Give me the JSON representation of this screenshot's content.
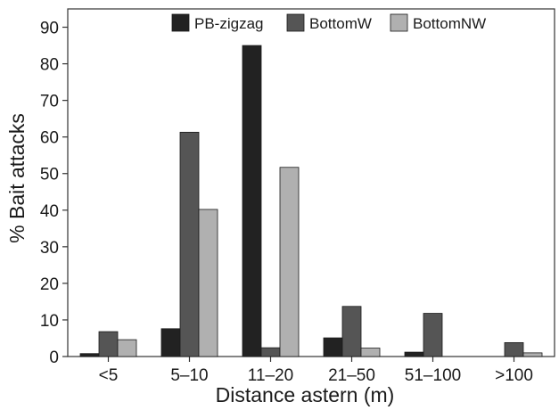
{
  "chart_data": {
    "type": "bar",
    "title": "",
    "xlabel": "Distance astern (m)",
    "ylabel": "% Bait attacks",
    "categories": [
      "<5",
      "5–10",
      "11–20",
      "21–50",
      "51–100",
      ">100"
    ],
    "ylim": [
      0,
      95
    ],
    "yticks": [
      0,
      10,
      20,
      30,
      40,
      50,
      60,
      70,
      80,
      90
    ],
    "grid": false,
    "legend_position": "top-right",
    "series": [
      {
        "name": "PB-zigzag",
        "color": "#222222",
        "values": [
          0.8,
          7.6,
          85.0,
          5.1,
          1.2,
          0
        ]
      },
      {
        "name": "BottomW",
        "color": "#555555",
        "values": [
          6.8,
          61.3,
          2.4,
          13.7,
          11.8,
          3.8
        ]
      },
      {
        "name": "BottomNW",
        "color": "#b0b0b0",
        "values": [
          4.6,
          40.2,
          51.7,
          2.3,
          0,
          1.0
        ]
      }
    ]
  }
}
